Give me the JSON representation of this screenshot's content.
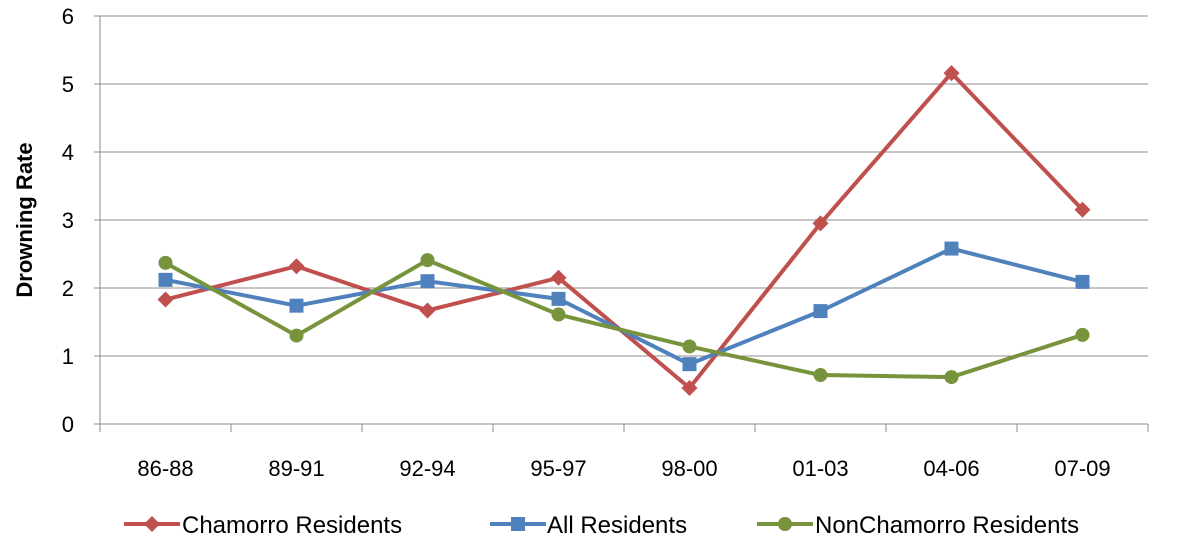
{
  "chart_data": {
    "type": "line",
    "title": "",
    "xlabel": "",
    "ylabel": "Drowning Rate",
    "ylim": [
      0,
      6
    ],
    "yticks": [
      0,
      1,
      2,
      3,
      4,
      5,
      6
    ],
    "grid": true,
    "legend": "bottom",
    "categories": [
      "86-88",
      "89-91",
      "92-94",
      "95-97",
      "98-00",
      "01-03",
      "04-06",
      "07-09"
    ],
    "series": [
      {
        "name": "Chamorro Residents",
        "color": "#c0504d",
        "marker": "diamond",
        "values": [
          1.83,
          2.32,
          1.67,
          2.15,
          0.53,
          2.95,
          5.16,
          3.15
        ]
      },
      {
        "name": "All Residents",
        "color": "#4f81bd",
        "marker": "square",
        "values": [
          2.12,
          1.74,
          2.1,
          1.84,
          0.88,
          1.66,
          2.58,
          2.09
        ]
      },
      {
        "name": "NonChamorro Residents",
        "color": "#77933c",
        "marker": "circle",
        "values": [
          2.37,
          1.3,
          2.41,
          1.61,
          1.14,
          0.72,
          0.69,
          1.31
        ]
      }
    ]
  }
}
